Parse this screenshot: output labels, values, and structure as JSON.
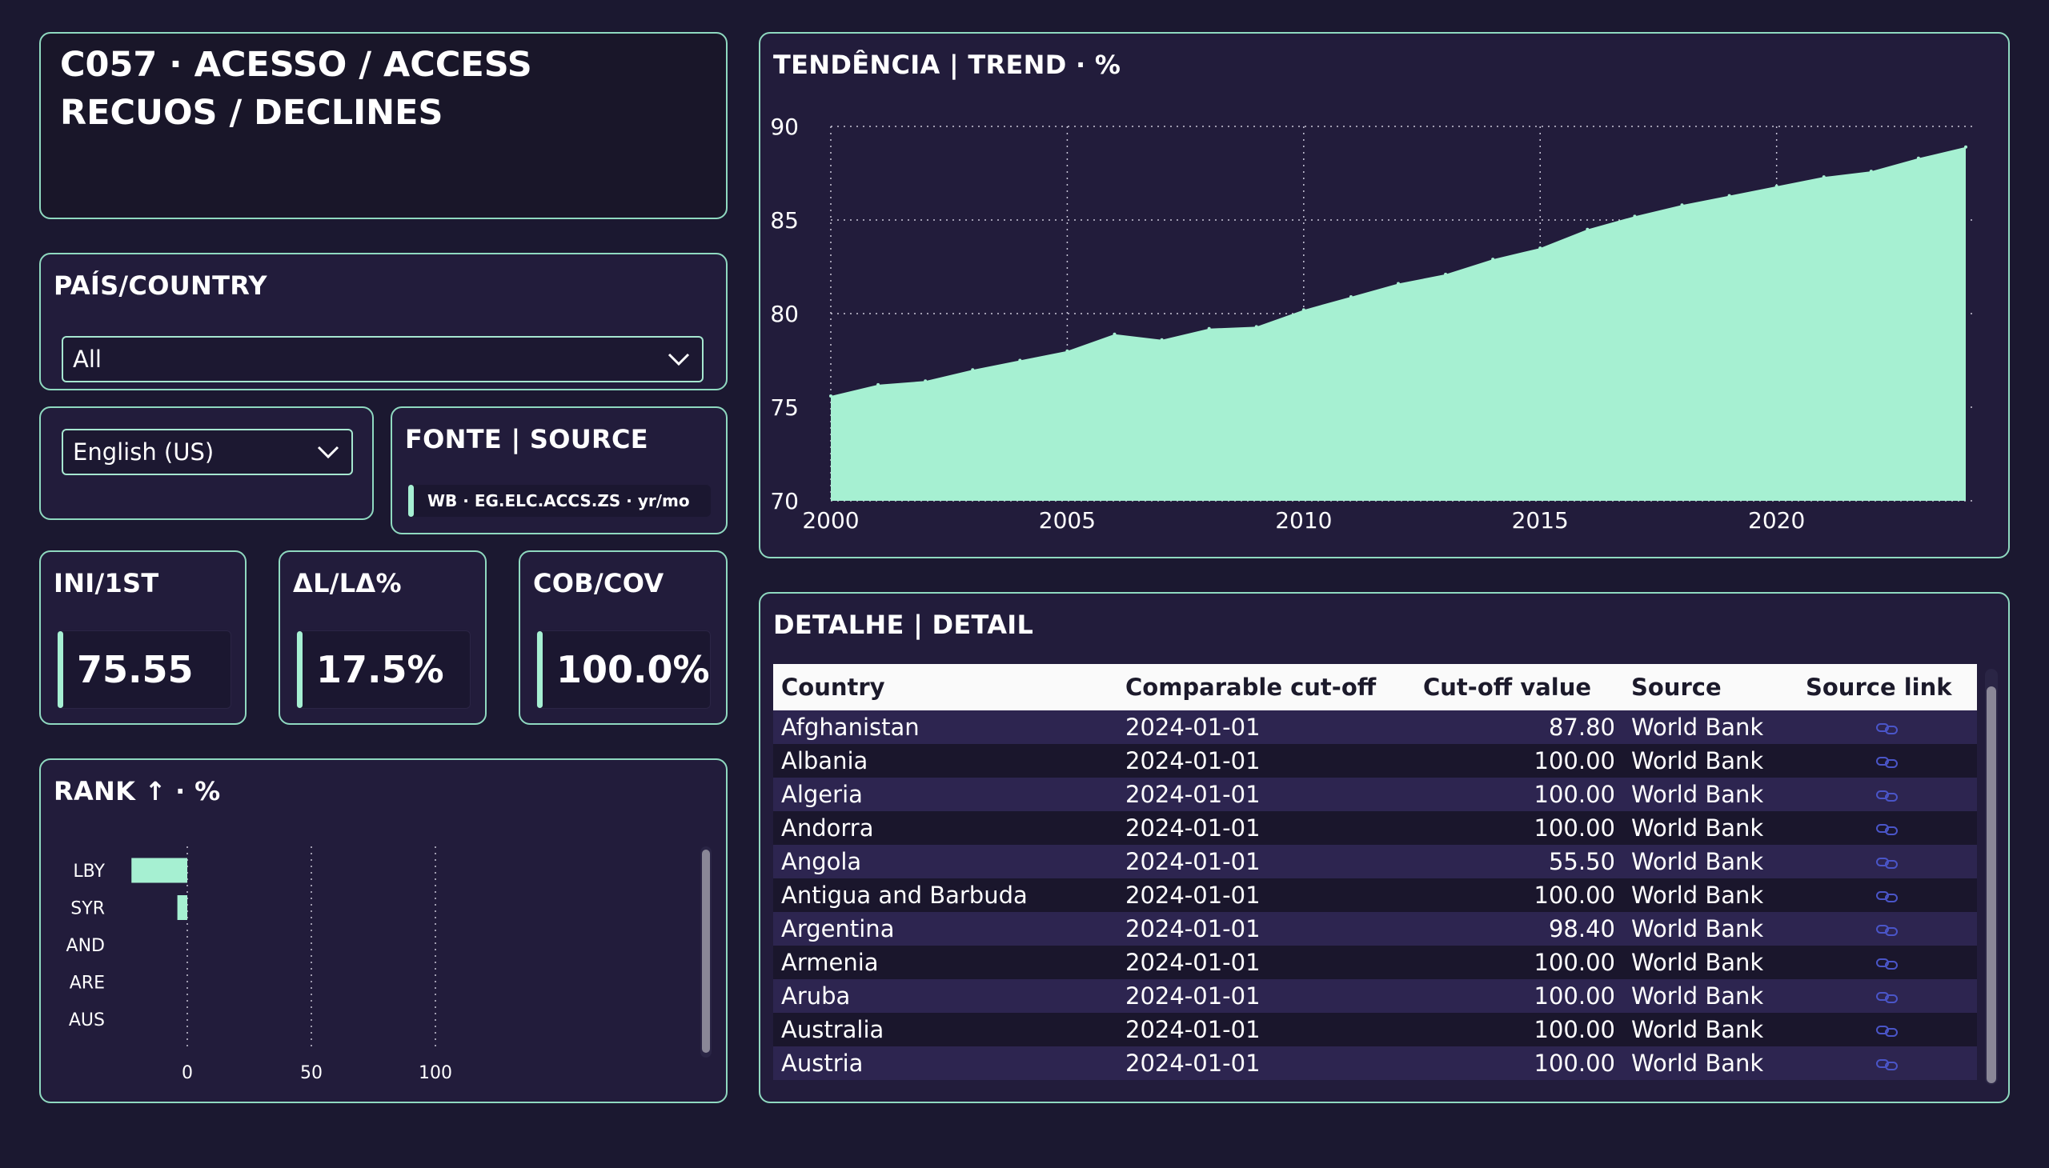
{
  "header": {
    "title_line1": "C057 · ACESSO / ACCESS",
    "title_line2": "RECUOS / DECLINES"
  },
  "country_filter": {
    "title": "PAÍS/COUNTRY",
    "selected": "All"
  },
  "language": {
    "selected": "English (US)"
  },
  "source": {
    "title": "FONTE | SOURCE",
    "value": "WB · EG.ELC.ACCS.ZS · yr/mo"
  },
  "kpis": [
    {
      "label": "INI/1ST",
      "value": "75.55"
    },
    {
      "label": "ΔL/LΔ%",
      "value": "17.5%"
    },
    {
      "label": "COB/COV",
      "value": "100.0%"
    }
  ],
  "rank": {
    "title": "RANK ↑ · %",
    "chart_data": {
      "type": "bar",
      "orientation": "horizontal",
      "categories": [
        "LBY",
        "SYR",
        "AND",
        "ARE",
        "AUS"
      ],
      "values": [
        -22.5,
        -4,
        0,
        0,
        0
      ],
      "xlim": [
        -33,
        100
      ],
      "xticks": [
        "0",
        "50",
        "100"
      ],
      "color": "#a6f0d2"
    }
  },
  "trend": {
    "title": "TENDÊNCIA | TREND · %",
    "chart_data": {
      "type": "area",
      "x": [
        2000,
        2001,
        2002,
        2003,
        2004,
        2005,
        2006,
        2007,
        2008,
        2009,
        2010,
        2011,
        2012,
        2013,
        2014,
        2015,
        2016,
        2017,
        2018,
        2019,
        2020,
        2021,
        2022,
        2023,
        2024
      ],
      "values": [
        75.6,
        76.2,
        76.4,
        77.0,
        77.5,
        78.0,
        78.9,
        78.6,
        79.2,
        79.3,
        80.2,
        80.9,
        81.6,
        82.1,
        82.9,
        83.5,
        84.5,
        85.2,
        85.8,
        86.3,
        86.8,
        87.3,
        87.6,
        88.3,
        88.9
      ],
      "xlim": [
        2000,
        2024
      ],
      "ylim": [
        70,
        90
      ],
      "yticks": [
        "70",
        "75",
        "80",
        "85",
        "90"
      ],
      "xticks": [
        "2000",
        "2005",
        "2010",
        "2015",
        "2020"
      ],
      "grid": true,
      "color": "#a6f0d2"
    }
  },
  "detail": {
    "title": "DETALHE | DETAIL",
    "columns": [
      "Country",
      "Comparable cut-off",
      "Cut-off value",
      "Source",
      "Source link"
    ],
    "rows": [
      [
        "Afghanistan",
        "2024-01-01",
        "87.80",
        "World Bank"
      ],
      [
        "Albania",
        "2024-01-01",
        "100.00",
        "World Bank"
      ],
      [
        "Algeria",
        "2024-01-01",
        "100.00",
        "World Bank"
      ],
      [
        "Andorra",
        "2024-01-01",
        "100.00",
        "World Bank"
      ],
      [
        "Angola",
        "2024-01-01",
        "55.50",
        "World Bank"
      ],
      [
        "Antigua and Barbuda",
        "2024-01-01",
        "100.00",
        "World Bank"
      ],
      [
        "Argentina",
        "2024-01-01",
        "98.40",
        "World Bank"
      ],
      [
        "Armenia",
        "2024-01-01",
        "100.00",
        "World Bank"
      ],
      [
        "Aruba",
        "2024-01-01",
        "100.00",
        "World Bank"
      ],
      [
        "Australia",
        "2024-01-01",
        "100.00",
        "World Bank"
      ],
      [
        "Austria",
        "2024-01-01",
        "100.00",
        "World Bank"
      ]
    ],
    "link_icon": "link-icon"
  },
  "colors": {
    "background": "#1b1830",
    "accent": "#a6f0d2",
    "border": "#8fd9c0"
  }
}
